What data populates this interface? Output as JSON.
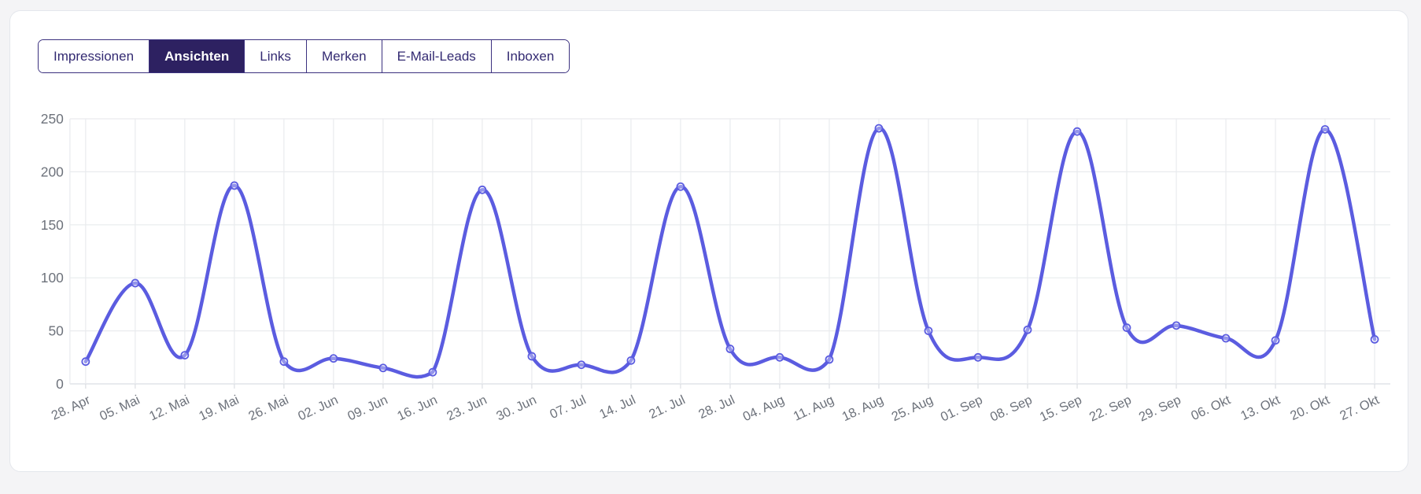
{
  "tabs": {
    "items": [
      {
        "label": "Impressionen",
        "active": false
      },
      {
        "label": "Ansichten",
        "active": true
      },
      {
        "label": "Links",
        "active": false
      },
      {
        "label": "Merken",
        "active": false
      },
      {
        "label": "E-Mail-Leads",
        "active": false
      },
      {
        "label": "Inboxen",
        "active": false
      }
    ]
  },
  "chart_data": {
    "type": "line",
    "categories": [
      "28. Apr",
      "05. Mai",
      "12. Mai",
      "19. Mai",
      "26. Mai",
      "02. Jun",
      "09. Jun",
      "16. Jun",
      "23. Jun",
      "30. Jun",
      "07. Jul",
      "14. Jul",
      "21. Jul",
      "28. Jul",
      "04. Aug",
      "11. Aug",
      "18. Aug",
      "25. Aug",
      "01. Sep",
      "08. Sep",
      "15. Sep",
      "22. Sep",
      "29. Sep",
      "06. Okt",
      "13. Okt",
      "20. Okt",
      "27. Okt"
    ],
    "series": [
      {
        "name": "Ansichten",
        "values": [
          21,
          95,
          27,
          187,
          21,
          24,
          15,
          11,
          183,
          26,
          18,
          22,
          186,
          33,
          25,
          23,
          241,
          50,
          25,
          51,
          238,
          53,
          55,
          43,
          41,
          240,
          42
        ]
      }
    ],
    "ylim": [
      0,
      250
    ],
    "yticks": [
      0,
      50,
      100,
      150,
      200,
      250
    ],
    "grid": true,
    "legend": "none",
    "line_color": "#5b5ce0",
    "point_style": "circle",
    "x_label_rotation": -25
  },
  "colors": {
    "page_bg": "#f4f4f6",
    "card_bg": "#ffffff",
    "card_border": "#e4e7ec",
    "tab_border": "#3b317f",
    "tab_active_bg": "#2d2161",
    "tab_active_text": "#ffffff",
    "tab_text": "#332a72",
    "grid": "#e9ebee",
    "axis_line": "#dbdee3",
    "axis_text": "#6d727b",
    "line": "#5b5ce0"
  }
}
